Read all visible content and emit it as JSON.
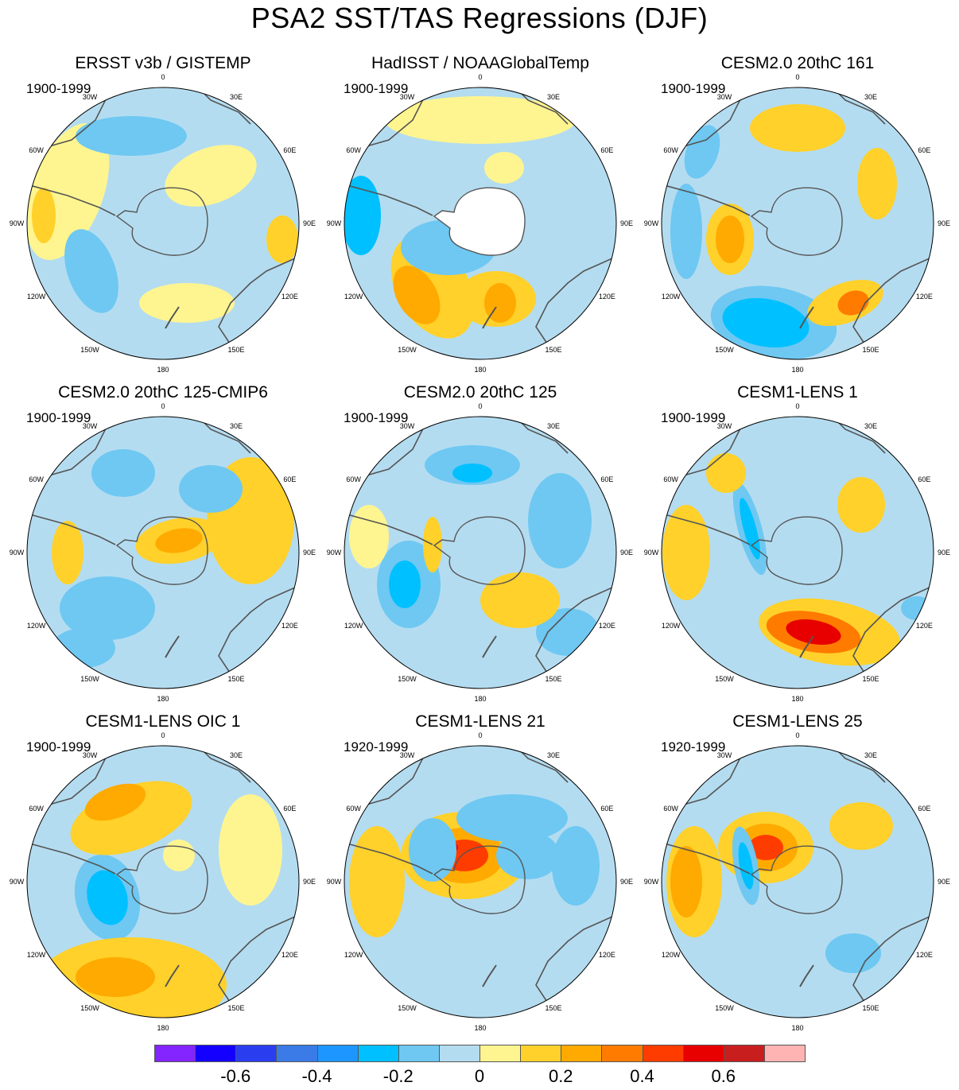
{
  "title": "PSA2 SST/TAS Regressions (DJF)",
  "longitude_labels": [
    "0",
    "30E",
    "60E",
    "90E",
    "120E",
    "150E",
    "180",
    "150W",
    "120W",
    "90W",
    "60W",
    "30W"
  ],
  "panels": [
    {
      "title": "ERSST v3b / GISTEMP",
      "period": "1900-1999"
    },
    {
      "title": "HadISST / NOAAGlobalTemp",
      "period": "1900-1999"
    },
    {
      "title": "CESM2.0 20thC 161",
      "period": "1900-1999"
    },
    {
      "title": "CESM2.0 20thC 125-CMIP6",
      "period": "1900-1999"
    },
    {
      "title": "CESM2.0 20thC 125",
      "period": "1900-1999"
    },
    {
      "title": "CESM1-LENS 1",
      "period": "1900-1999"
    },
    {
      "title": "CESM1-LENS OIC 1",
      "period": "1900-1999"
    },
    {
      "title": "CESM1-LENS 21",
      "period": "1920-1999"
    },
    {
      "title": "CESM1-LENS 25",
      "period": "1920-1999"
    }
  ],
  "colorbar": {
    "colors": [
      "#8424ff",
      "#1400ff",
      "#2a3ef0",
      "#3a7be8",
      "#1e96ff",
      "#00c0ff",
      "#6ec8f2",
      "#b4dcf0",
      "#fff590",
      "#ffd12a",
      "#ffaa00",
      "#ff7b00",
      "#ff3c00",
      "#e80000",
      "#c81e1e",
      "#ffb4b4"
    ],
    "tick_labels": [
      "-0.6",
      "-0.4",
      "-0.2",
      "0",
      "0.2",
      "0.4",
      "0.6"
    ]
  },
  "colors": {
    "continent_outline": "#555555",
    "land_fill": "#ffffff",
    "map_border": "#000000"
  }
}
